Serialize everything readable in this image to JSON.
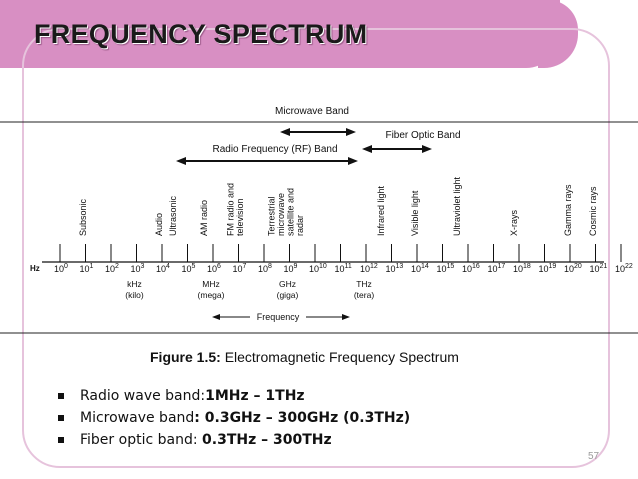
{
  "slide": {
    "title": "FREQUENCY SPECTRUM",
    "page_number": "57"
  },
  "figure": {
    "bands": {
      "microwave": "Microwave Band",
      "fiber_optic": "Fiber Optic Band",
      "radio_frequency": "Radio Frequency (RF) Band"
    },
    "regions": [
      "Subsonic",
      "Audio",
      "Ultrasonic",
      "AM radio",
      "FM radio and television",
      "Terrestrial microwave satellite and radar",
      "Infrared light",
      "Visible light",
      "Ultraviolet light",
      "X-rays",
      "Gamma rays",
      "Cosmic rays"
    ],
    "axis_unit": "Hz",
    "exponents": [
      "0",
      "1",
      "2",
      "3",
      "4",
      "5",
      "6",
      "7",
      "8",
      "9",
      "10",
      "11",
      "12",
      "13",
      "14",
      "15",
      "16",
      "17",
      "18",
      "19",
      "20",
      "21",
      "22"
    ],
    "prefixes": [
      {
        "unit": "kHz",
        "name": "(kilo)"
      },
      {
        "unit": "MHz",
        "name": "(mega)"
      },
      {
        "unit": "GHz",
        "name": "(giga)"
      },
      {
        "unit": "THz",
        "name": "(tera)"
      }
    ],
    "frequency_label": "Frequency"
  },
  "caption": {
    "label": "Figure 1.5:",
    "text": "Electromagnetic Frequency Spectrum"
  },
  "bullets": [
    {
      "label": "Radio wave band:",
      "value": "1MHz – 1THz"
    },
    {
      "label": "Microwave band",
      "value": ": 0.3GHz – 300GHz (0.3THz)"
    },
    {
      "label": "Fiber optic band: ",
      "value": "0.3THz – 300THz"
    }
  ]
}
